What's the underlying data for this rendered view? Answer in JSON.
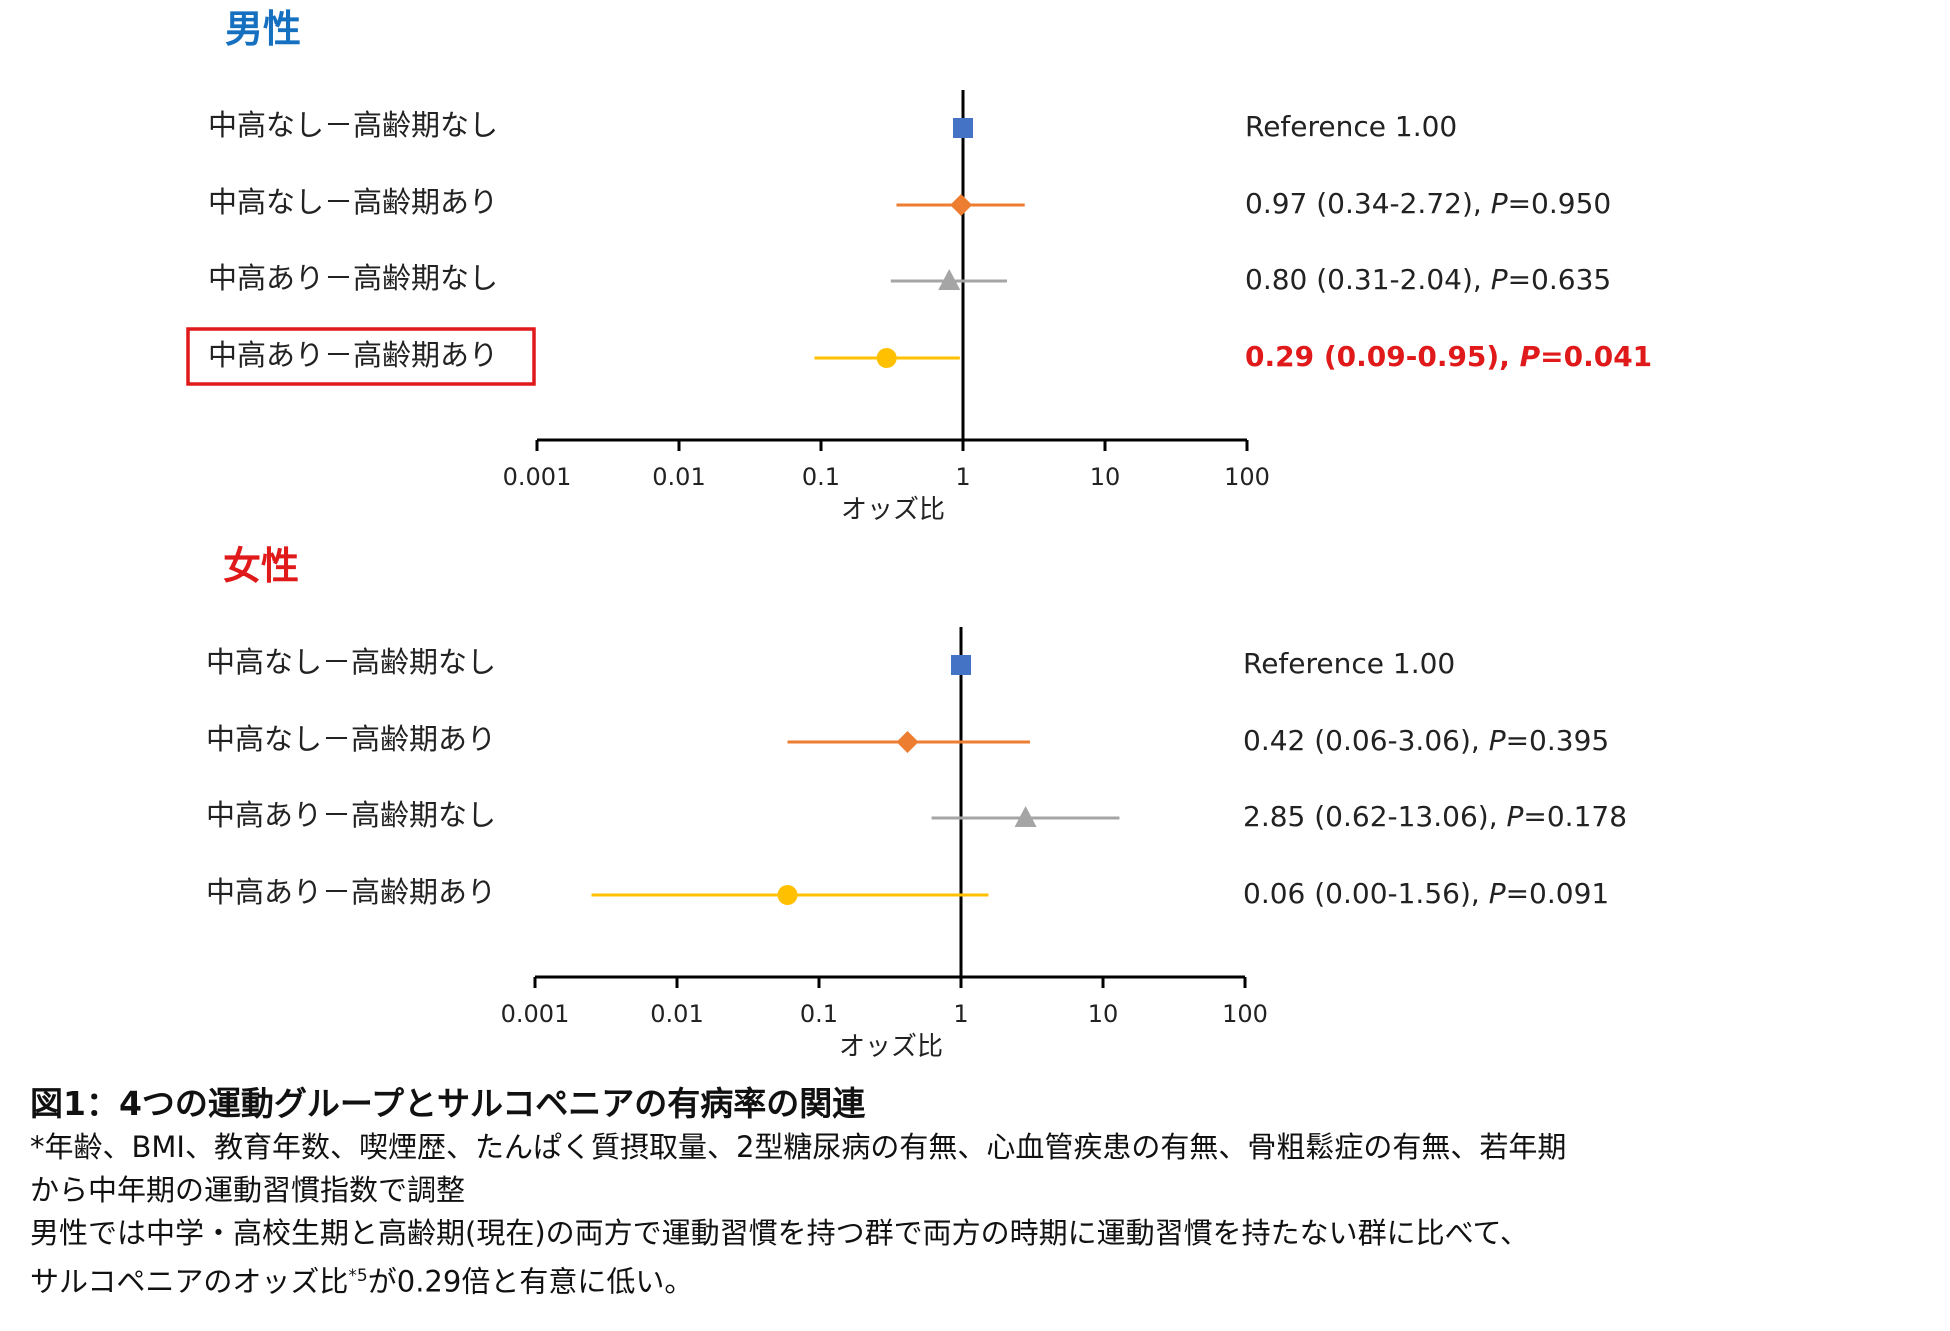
{
  "colors": {
    "male_heading": "#1570c0",
    "female_heading": "#e0191a",
    "highlight": "#e0191a",
    "axis": "#000000",
    "text": "#222222"
  },
  "chart_data": [
    {
      "type": "forest",
      "title": "男性",
      "xlabel": "オッズ比",
      "x_scale": "log",
      "xlim": [
        0.001,
        100
      ],
      "x_ticks": [
        "0.001",
        "0.01",
        "0.1",
        "1",
        "10",
        "100"
      ],
      "reference_line": 1,
      "rows": [
        {
          "label": "中高なし－高齢期なし",
          "or": 1.0,
          "ci": null,
          "marker": "square",
          "color": "#4472c4",
          "text": {
            "est": "Reference  1.00",
            "p_label": "",
            "p_value": ""
          },
          "highlight": false
        },
        {
          "label": "中高なし－高齢期あり",
          "or": 0.97,
          "ci": [
            0.34,
            2.72
          ],
          "marker": "diamond",
          "color": "#ed7d31",
          "text": {
            "est": "0.97 (0.34-2.72), ",
            "p_label": "P",
            "p_value": "=0.950"
          },
          "highlight": false
        },
        {
          "label": "中高あり－高齢期なし",
          "or": 0.8,
          "ci": [
            0.31,
            2.04
          ],
          "marker": "triangle",
          "color": "#a5a5a5",
          "text": {
            "est": "0.80 (0.31-2.04), ",
            "p_label": "P",
            "p_value": "=0.635"
          },
          "highlight": false
        },
        {
          "label": "中高あり－高齢期あり",
          "or": 0.29,
          "ci": [
            0.09,
            0.95
          ],
          "marker": "circle",
          "color": "#ffc000",
          "text": {
            "est": "0.29 (0.09-0.95), ",
            "p_label": "P",
            "p_value": "=0.041"
          },
          "highlight": true
        }
      ]
    },
    {
      "type": "forest",
      "title": "女性",
      "xlabel": "オッズ比",
      "x_scale": "log",
      "xlim": [
        0.001,
        100
      ],
      "x_ticks": [
        "0.001",
        "0.01",
        "0.1",
        "1",
        "10",
        "100"
      ],
      "reference_line": 1,
      "rows": [
        {
          "label": "中高なし－高齢期なし",
          "or": 1.0,
          "ci": null,
          "marker": "square",
          "color": "#4472c4",
          "text": {
            "est": "Reference  1.00",
            "p_label": "",
            "p_value": ""
          },
          "highlight": false
        },
        {
          "label": "中高なし－高齢期あり",
          "or": 0.42,
          "ci": [
            0.06,
            3.06
          ],
          "marker": "diamond",
          "color": "#ed7d31",
          "text": {
            "est": "0.42 (0.06-3.06), ",
            "p_label": "P",
            "p_value": "=0.395"
          },
          "highlight": false
        },
        {
          "label": "中高あり－高齢期なし",
          "or": 2.85,
          "ci": [
            0.62,
            13.06
          ],
          "marker": "triangle",
          "color": "#a5a5a5",
          "text": {
            "est": "2.85 (0.62-13.06), ",
            "p_label": "P",
            "p_value": "=0.178"
          },
          "highlight": false
        },
        {
          "label": "中高あり－高齢期あり",
          "or": 0.06,
          "ci": [
            0.0025,
            1.56
          ],
          "marker": "circle",
          "color": "#ffc000",
          "text": {
            "est": "0.06 (0.00-1.56), ",
            "p_label": "P",
            "p_value": "=0.091"
          },
          "highlight": false
        }
      ]
    }
  ],
  "caption": {
    "title": "図1：4つの運動グループとサルコペニアの有病率の関連",
    "line1": "*年齢、BMI、教育年数、喫煙歴、たんぱく質摂取量、2型糖尿病の有無、心血管疾患の有無、骨粗鬆症の有無、若年期",
    "line2": "から中年期の運動習慣指数で調整",
    "line3": "男性では中学・高校生期と高齢期(現在)の両方で運動習慣を持つ群で両方の時期に運動習慣を持たない群に比べて、",
    "line4a": "サルコペニアのオッズ比",
    "line4sup": "*5",
    "line4b": "が0.29倍と有意に低い。"
  }
}
